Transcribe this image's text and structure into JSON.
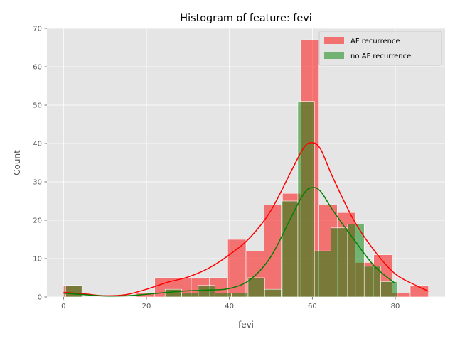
{
  "chart_data": {
    "type": "bar",
    "title": "Histogram of feature: fevi",
    "xlabel": "fevi",
    "ylabel": "Count",
    "xlim": [
      -4,
      92
    ],
    "ylim": [
      0,
      70
    ],
    "xticks": [
      0,
      20,
      40,
      60,
      80
    ],
    "yticks": [
      0,
      10,
      20,
      30,
      40,
      50,
      60,
      70
    ],
    "grid": true,
    "legend_position": "top-right",
    "colors": {
      "plot_bg": "#E5E5E5",
      "grid": "#FFFFFF",
      "AF recurrence": "#FF0000",
      "no AF recurrence": "#008000",
      "bar_edge": "#FFFFFF"
    },
    "series": [
      {
        "name": "AF recurrence",
        "bin_width": 4.4,
        "bins": [
          {
            "x0": 0.0,
            "count": 3
          },
          {
            "x0": 17.6,
            "count": 1
          },
          {
            "x0": 22.0,
            "count": 5
          },
          {
            "x0": 26.4,
            "count": 5
          },
          {
            "x0": 30.8,
            "count": 5
          },
          {
            "x0": 35.2,
            "count": 5
          },
          {
            "x0": 39.6,
            "count": 15
          },
          {
            "x0": 44.0,
            "count": 12
          },
          {
            "x0": 48.4,
            "count": 24
          },
          {
            "x0": 52.8,
            "count": 27
          },
          {
            "x0": 57.2,
            "count": 67
          },
          {
            "x0": 61.6,
            "count": 24
          },
          {
            "x0": 66.0,
            "count": 22
          },
          {
            "x0": 70.4,
            "count": 9
          },
          {
            "x0": 74.8,
            "count": 11
          },
          {
            "x0": 79.2,
            "count": 1
          },
          {
            "x0": 83.6,
            "count": 3
          }
        ],
        "kde": [
          [
            0,
            1.2
          ],
          [
            5,
            0.8
          ],
          [
            10,
            0.3
          ],
          [
            15,
            0.6
          ],
          [
            20,
            2.0
          ],
          [
            25,
            3.8
          ],
          [
            30,
            5.2
          ],
          [
            35,
            7.5
          ],
          [
            40,
            11.0
          ],
          [
            45,
            15.5
          ],
          [
            50,
            22.5
          ],
          [
            55,
            33.0
          ],
          [
            58,
            39.0
          ],
          [
            60,
            40.2
          ],
          [
            62,
            38.5
          ],
          [
            65,
            31.0
          ],
          [
            70,
            20.0
          ],
          [
            75,
            12.0
          ],
          [
            80,
            6.0
          ],
          [
            85,
            3.0
          ],
          [
            88,
            1.5
          ]
        ]
      },
      {
        "name": "no AF recurrence",
        "bin_width": 4.0,
        "bins": [
          {
            "x0": 0.5,
            "count": 3
          },
          {
            "x0": 24.5,
            "count": 2
          },
          {
            "x0": 28.5,
            "count": 1
          },
          {
            "x0": 32.5,
            "count": 3
          },
          {
            "x0": 36.5,
            "count": 1
          },
          {
            "x0": 40.5,
            "count": 1
          },
          {
            "x0": 44.5,
            "count": 5
          },
          {
            "x0": 48.5,
            "count": 2
          },
          {
            "x0": 52.5,
            "count": 25
          },
          {
            "x0": 56.5,
            "count": 51
          },
          {
            "x0": 60.5,
            "count": 12
          },
          {
            "x0": 64.5,
            "count": 18
          },
          {
            "x0": 68.5,
            "count": 19
          },
          {
            "x0": 72.5,
            "count": 8
          },
          {
            "x0": 76.5,
            "count": 4
          }
        ],
        "kde": [
          [
            0,
            1.0
          ],
          [
            5,
            0.6
          ],
          [
            10,
            0.25
          ],
          [
            15,
            0.3
          ],
          [
            20,
            0.7
          ],
          [
            25,
            1.2
          ],
          [
            30,
            1.6
          ],
          [
            35,
            1.8
          ],
          [
            40,
            2.2
          ],
          [
            45,
            4.5
          ],
          [
            50,
            10.5
          ],
          [
            55,
            21.0
          ],
          [
            58,
            27.0
          ],
          [
            60,
            28.5
          ],
          [
            62,
            27.5
          ],
          [
            65,
            22.5
          ],
          [
            70,
            15.0
          ],
          [
            75,
            8.0
          ],
          [
            80,
            3.5
          ]
        ]
      }
    ]
  }
}
